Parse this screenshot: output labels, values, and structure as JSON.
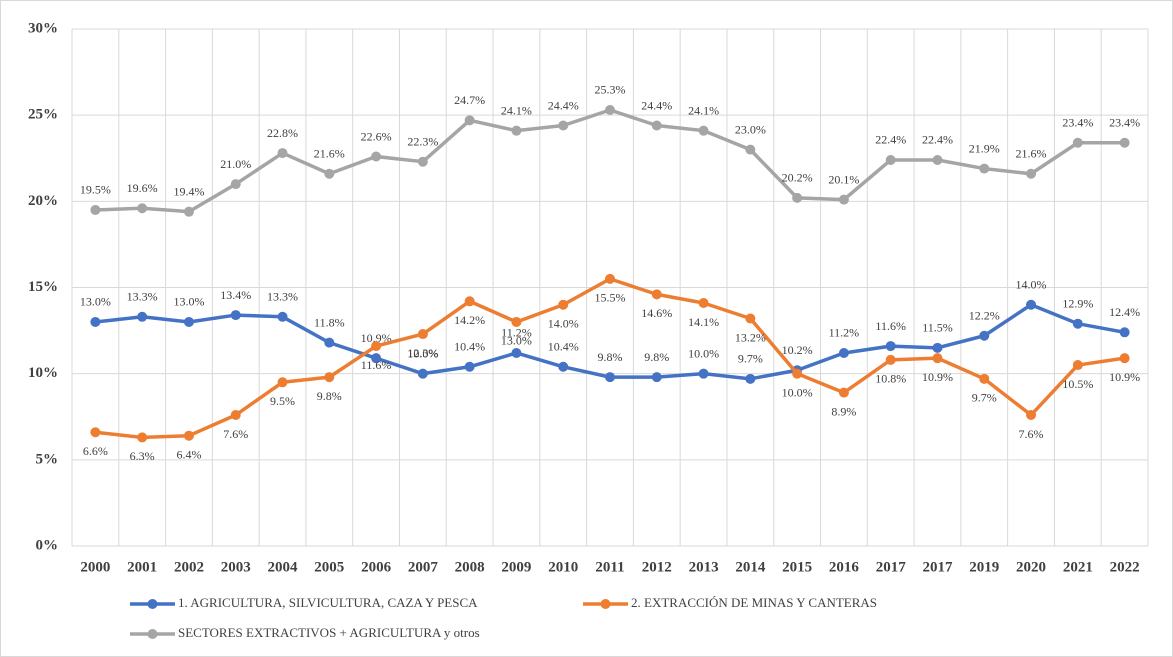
{
  "chart_data": {
    "type": "line",
    "categories": [
      "2000",
      "2001",
      "2002",
      "2003",
      "2004",
      "2005",
      "2006",
      "2007",
      "2008",
      "2009",
      "2010",
      "2011",
      "2012",
      "2013",
      "2014",
      "2015",
      "2016",
      "2017",
      "2017",
      "2019",
      "2020",
      "2021",
      "2022"
    ],
    "series": [
      {
        "name": "1. AGRICULTURA, SILVICULTURA, CAZA Y PESCA",
        "color": "#4472c4",
        "values": [
          13.0,
          13.3,
          13.0,
          13.4,
          13.3,
          11.8,
          10.9,
          10.0,
          10.4,
          11.2,
          10.4,
          9.8,
          9.8,
          10.0,
          9.7,
          10.2,
          11.2,
          11.6,
          11.5,
          12.2,
          14.0,
          12.9,
          12.4
        ],
        "value_labels": [
          "13.0%",
          "13.3%",
          "13.0%",
          "13.4%",
          "13.3%",
          "11.8%",
          "10.9%",
          "10.0%",
          "10.4%",
          "11.2%",
          "10.4%",
          "9.8%",
          "9.8%",
          "10.0%",
          "9.7%",
          "10.2%",
          "11.2%",
          "11.6%",
          "11.5%",
          "12.2%",
          "14.0%",
          "12.9%",
          "12.4%"
        ]
      },
      {
        "name": "2. EXTRACCIÓN DE MINAS Y CANTERAS",
        "color": "#ed7d31",
        "values": [
          6.6,
          6.3,
          6.4,
          7.6,
          9.5,
          9.8,
          11.6,
          12.3,
          14.2,
          13.0,
          14.0,
          15.5,
          14.6,
          14.1,
          13.2,
          10.0,
          8.9,
          10.8,
          10.9,
          9.7,
          7.6,
          10.5,
          10.9
        ],
        "value_labels": [
          "6.6%",
          "6.3%",
          "6.4%",
          "7.6%",
          "9.5%",
          "9.8%",
          "11.6%",
          "12.3%",
          "14.2%",
          "13.0%",
          "14.0%",
          "15.5%",
          "14.6%",
          "14.1%",
          "13.2%",
          "10.0%",
          "8.9%",
          "10.8%",
          "10.9%",
          "9.7%",
          "7.6%",
          "10.5%",
          "10.9%"
        ]
      },
      {
        "name": "SECTORES EXTRACTIVOS + AGRICULTURA y otros",
        "color": "#a5a5a5",
        "values": [
          19.5,
          19.6,
          19.4,
          21.0,
          22.8,
          21.6,
          22.6,
          22.3,
          24.7,
          24.1,
          24.4,
          25.3,
          24.4,
          24.1,
          23.0,
          20.2,
          20.1,
          22.4,
          22.4,
          21.9,
          21.6,
          23.4,
          23.4
        ],
        "value_labels": [
          "19.5%",
          "19.6%",
          "19.4%",
          "21.0%",
          "22.8%",
          "21.6%",
          "22.6%",
          "22.3%",
          "24.7%",
          "24.1%",
          "24.4%",
          "25.3%",
          "24.4%",
          "24.1%",
          "23.0%",
          "20.2%",
          "20.1%",
          "22.4%",
          "22.4%",
          "21.9%",
          "21.6%",
          "23.4%",
          "23.4%"
        ]
      }
    ],
    "ylim": [
      0,
      30
    ],
    "yticks": [
      {
        "value": 0,
        "label": "0%"
      },
      {
        "value": 5,
        "label": "5%"
      },
      {
        "value": 10,
        "label": "10%"
      },
      {
        "value": 15,
        "label": "15%"
      },
      {
        "value": 20,
        "label": "20%"
      },
      {
        "value": 25,
        "label": "25%"
      },
      {
        "value": 30,
        "label": "30%"
      }
    ],
    "grid": true,
    "legend": "bottom"
  }
}
